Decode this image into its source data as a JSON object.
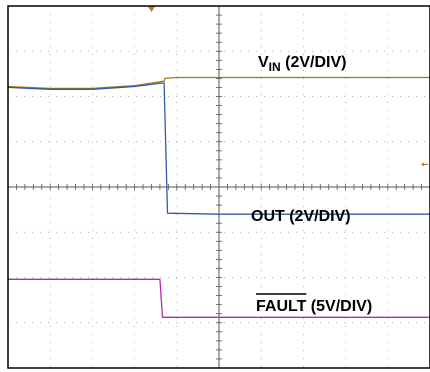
{
  "chart_data": {
    "type": "line",
    "title": "",
    "xlabel": "",
    "ylabel": "",
    "divisions": {
      "x": 10,
      "y": 8
    },
    "grid": true,
    "xlim": [
      0,
      10
    ],
    "ylim": [
      0,
      8
    ],
    "series": [
      {
        "name": "V_IN",
        "label_main": "V",
        "label_sub": "IN",
        "label_scale": " (2V/DIV)",
        "color": "#a8741c",
        "x": [
          0,
          1.0,
          2.0,
          3.0,
          3.7,
          3.72,
          4.0,
          6.0,
          8.0,
          10.0
        ],
        "y": [
          6.22,
          6.18,
          6.18,
          6.24,
          6.34,
          6.4,
          6.42,
          6.42,
          6.42,
          6.42
        ]
      },
      {
        "name": "OUT",
        "label_main": "OUT",
        "label_scale": " (2V/DIV)",
        "color": "#2d5da8",
        "x": [
          0,
          1.0,
          2.0,
          3.0,
          3.68,
          3.7,
          3.78,
          5.0,
          10.0
        ],
        "y": [
          6.2,
          6.16,
          6.16,
          6.22,
          6.3,
          6.3,
          3.42,
          3.4,
          3.4
        ],
        "fall_start_x": 3.7,
        "fall_end_x": 3.78
      },
      {
        "name": "FAULT",
        "label_main": "FAULT",
        "label_scale": " (5V/DIV)",
        "overline": true,
        "color": "#b02ca8",
        "x": [
          0,
          3.6,
          3.66,
          5.0,
          10.0
        ],
        "y": [
          1.96,
          1.96,
          1.12,
          1.12,
          1.12
        ]
      }
    ],
    "markers": {
      "trigger_x": 3.4,
      "trigger_color": "#c8762a",
      "level_marker_color": "#c8762a",
      "level_marker_y": 4.5
    }
  }
}
